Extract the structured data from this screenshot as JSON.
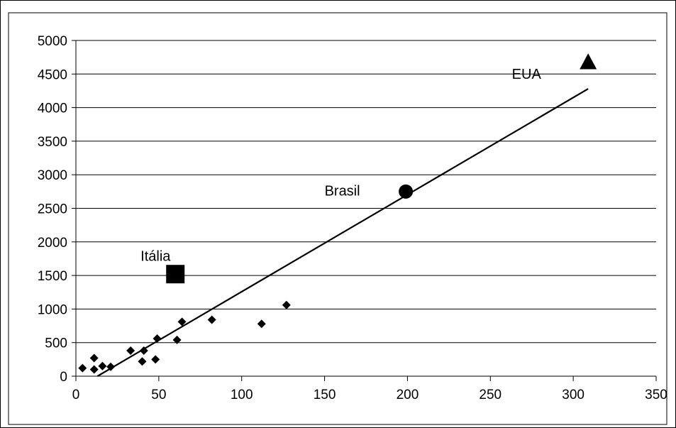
{
  "chart_data": {
    "type": "scatter",
    "title": "",
    "xlabel": "",
    "ylabel": "",
    "xlim": [
      0,
      350
    ],
    "ylim": [
      0,
      5000
    ],
    "xticks": [
      0,
      50,
      100,
      150,
      200,
      250,
      300,
      350
    ],
    "yticks": [
      0,
      500,
      1000,
      1500,
      2000,
      2500,
      3000,
      3500,
      4000,
      4500,
      5000
    ],
    "grid": "horizontal",
    "series": [
      {
        "marker": "diamond",
        "points": [
          [
            4,
            120
          ],
          [
            11,
            270
          ],
          [
            11,
            100
          ],
          [
            16,
            150
          ],
          [
            21,
            140
          ],
          [
            33,
            380
          ],
          [
            40,
            220
          ],
          [
            41,
            380
          ],
          [
            48,
            250
          ],
          [
            49,
            560
          ],
          [
            61,
            540
          ],
          [
            64,
            810
          ],
          [
            82,
            840
          ],
          [
            112,
            780
          ],
          [
            127,
            1060
          ]
        ]
      },
      {
        "marker": "square",
        "points": [
          [
            60,
            1520
          ]
        ]
      },
      {
        "marker": "circle",
        "points": [
          [
            199,
            2750
          ]
        ]
      },
      {
        "marker": "triangle",
        "points": [
          [
            309,
            4680
          ]
        ]
      }
    ],
    "trendline": {
      "start": [
        13,
        0
      ],
      "end": [
        309,
        4280
      ]
    },
    "annotations": [
      {
        "text": "Itália",
        "x": 39,
        "y": 1720
      },
      {
        "text": "Brasil",
        "x": 150,
        "y": 2690
      },
      {
        "text": "EUA",
        "x": 263,
        "y": 4430
      }
    ]
  }
}
